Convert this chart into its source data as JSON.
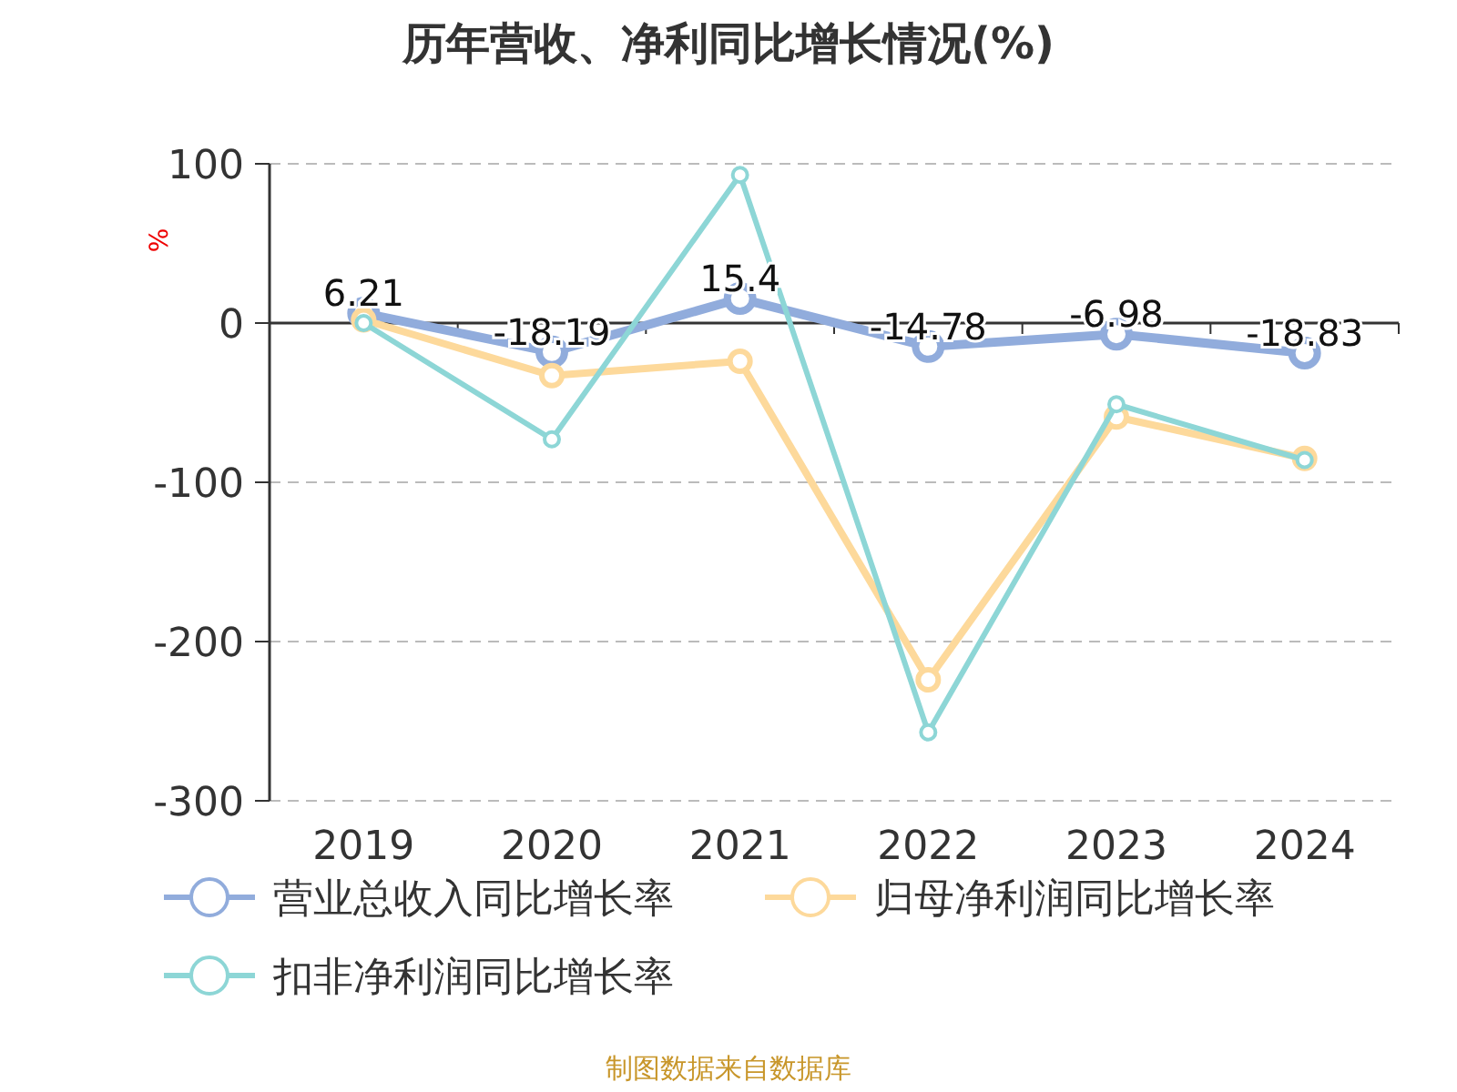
{
  "chart_data": {
    "type": "line",
    "title": "历年营收、净利同比增长情况(%)",
    "ylabel": "%",
    "categories": [
      "2019",
      "2020",
      "2021",
      "2022",
      "2023",
      "2024"
    ],
    "series": [
      {
        "name": "营业总收入同比增长率",
        "color": "#91acdc",
        "values": [
          6.21,
          -18.19,
          15.4,
          -14.78,
          -6.98,
          -18.83
        ],
        "value_labels": [
          "6.21",
          "-18.19",
          "15.4",
          "-14.78",
          "-6.98",
          "-18.83"
        ]
      },
      {
        "name": "归母净利润同比增长率",
        "color": "#fdd99b",
        "values": [
          2,
          -33,
          -24,
          -224,
          -59,
          -85
        ]
      },
      {
        "name": "扣非净利润同比增长率",
        "color": "#8dd6d6",
        "values": [
          0,
          -73,
          93,
          -257,
          -51,
          -86
        ]
      }
    ],
    "ylim": [
      -300,
      100
    ],
    "yticks": [
      -300,
      -200,
      -100,
      0,
      100
    ],
    "grid": "y",
    "legend": "bottom",
    "marker": "circle",
    "line_style": "solid",
    "annotations": [
      "制图数据来自数据库"
    ]
  }
}
